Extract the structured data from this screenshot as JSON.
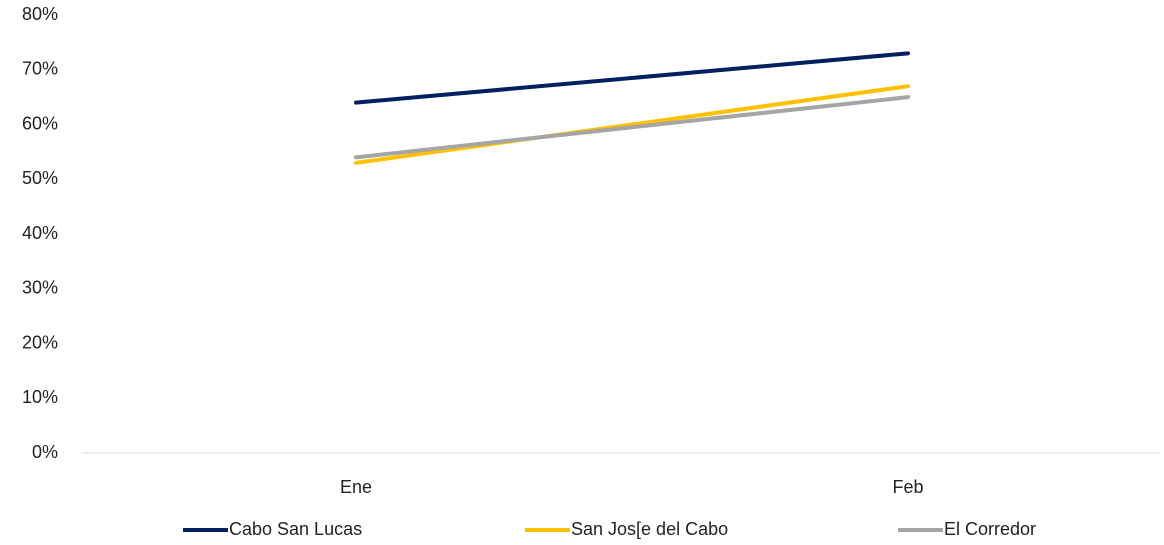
{
  "chart_data": {
    "type": "line",
    "categories": [
      "Ene",
      "Feb"
    ],
    "series": [
      {
        "name": "Cabo San Lucas",
        "color": "#002060",
        "values": [
          64,
          73
        ]
      },
      {
        "name": "San Jos[e del Cabo",
        "color": "#FFC000",
        "values": [
          53,
          67
        ]
      },
      {
        "name": "El Corredor",
        "color": "#A5A5A5",
        "values": [
          54,
          65
        ]
      }
    ],
    "ylim": [
      0,
      80
    ],
    "yticks": [
      {
        "value": 0,
        "label": "0%"
      },
      {
        "value": 10,
        "label": "10%"
      },
      {
        "value": 20,
        "label": "20%"
      },
      {
        "value": 30,
        "label": "30%"
      },
      {
        "value": 40,
        "label": "40%"
      },
      {
        "value": 50,
        "label": "50%"
      },
      {
        "value": 60,
        "label": "60%"
      },
      {
        "value": 70,
        "label": "70%"
      },
      {
        "value": 80,
        "label": "80%"
      }
    ],
    "legend": "bottom"
  }
}
